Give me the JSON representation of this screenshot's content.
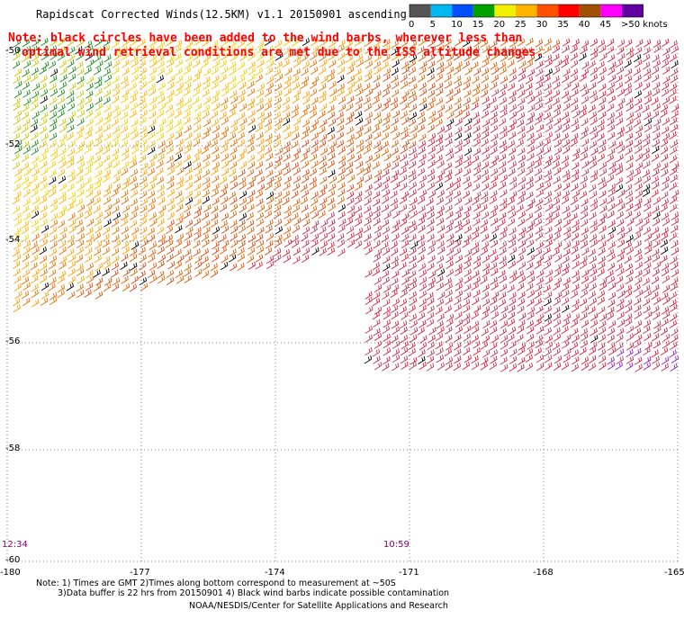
{
  "title": "Rapidscat Corrected Winds(12.5KM) v1.1 20150901 ascending",
  "note_lines": [
    "Note: black circles have been added to the wind barbs, wherever less than",
    "optimal wind retrieval conditions are met due to the ISS altitude changes."
  ],
  "legend": {
    "labels": [
      "0",
      "5",
      "10",
      "15",
      "20",
      "25",
      "30",
      "35",
      "40",
      "45",
      ">50 knots"
    ],
    "colors": [
      "#555555",
      "#00b8f0",
      "#0050ff",
      "#00a000",
      "#f0f000",
      "#ffb400",
      "#ff5000",
      "#ff0000",
      "#a05000",
      "#ff00ff",
      "#6000a0"
    ]
  },
  "lat_labels": [
    "-50",
    "-52",
    "-54",
    "-56",
    "-58",
    "-60"
  ],
  "lon_labels": [
    "-180",
    "-177",
    "-174",
    "-171",
    "-168",
    "-165"
  ],
  "time_labels": [
    "12:34",
    "10:59"
  ],
  "footer": {
    "line1": "Note: 1) Times are GMT 2)Times along bottom correspond to measurement at ~50S",
    "line2": "3)Data buffer is 22 hrs from 20150901 4) Black wind barbs indicate possible contamination",
    "credit": "NOAA/NESDIS/Center for Satellite Applications and Research"
  }
}
